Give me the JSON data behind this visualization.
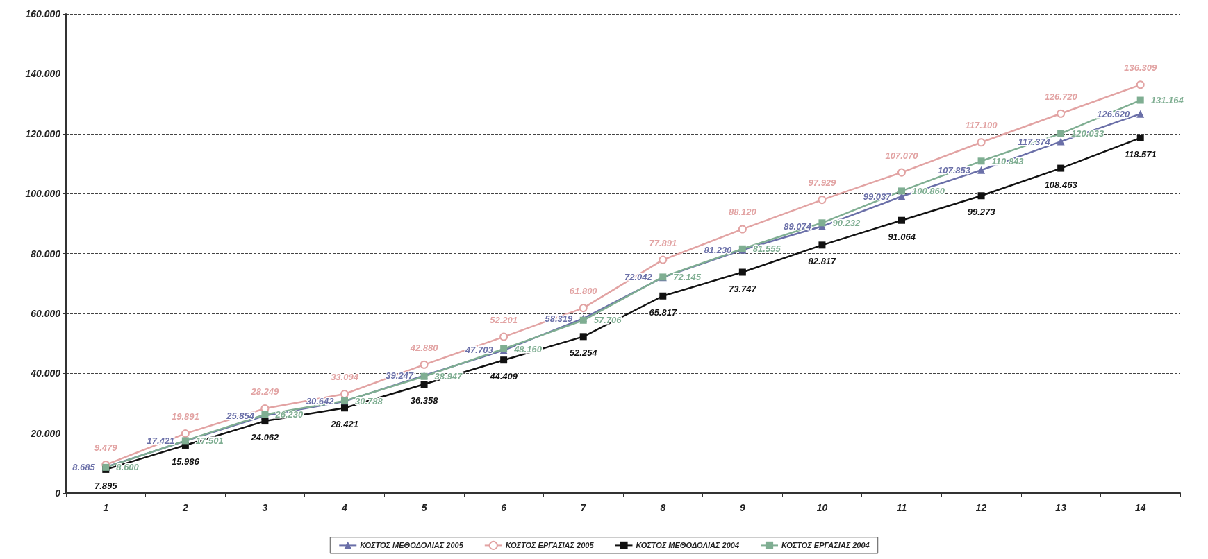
{
  "chart_data": {
    "type": "line",
    "categories": [
      "1",
      "2",
      "3",
      "4",
      "5",
      "6",
      "7",
      "8",
      "9",
      "10",
      "11",
      "12",
      "13",
      "14"
    ],
    "ylim": [
      0,
      160000
    ],
    "yticks": [
      0,
      {
        "value": 20000,
        "label": "20.000"
      },
      {
        "value": 40000,
        "label": "40.000"
      },
      {
        "value": 60000,
        "label": "60.000"
      },
      {
        "value": 80000,
        "label": "80.000"
      },
      {
        "value": 100000,
        "label": "100.000"
      },
      {
        "value": 120000,
        "label": "120.000"
      },
      {
        "value": 140000,
        "label": "140.000"
      },
      {
        "value": 160000,
        "label": "160.000"
      }
    ],
    "grid": "y",
    "legend": "bottom",
    "series": [
      {
        "name": "ΚΟΣΤΟΣ ΜΕΘΟΔΟΛΙΑΣ 2005",
        "color": "#6a6fa8",
        "marker": "triangle",
        "values": [
          8685,
          17421,
          25854,
          30642,
          39247,
          47703,
          58319,
          72042,
          81230,
          89074,
          99037,
          107853,
          117374,
          126620
        ],
        "value_labels": [
          "8.685",
          "17.421",
          "25.854",
          "30.642",
          "39.247",
          "47.703",
          "58.319",
          "72.042",
          "81.230",
          "89.074",
          "99.037",
          "107.853",
          "117.374",
          "126.620"
        ]
      },
      {
        "name": "ΚΟΣΤΟΣ ΕΡΓΑΣΙΑΣ 2005",
        "color": "#e2a3a3",
        "marker": "circle",
        "values": [
          9479,
          19891,
          28249,
          33094,
          42880,
          52201,
          61800,
          77891,
          88120,
          97929,
          107070,
          117100,
          126720,
          136309
        ],
        "value_labels": [
          "9.479",
          "19.891",
          "28.249",
          "33.094",
          "42.880",
          "52.201",
          "61.800",
          "77.891",
          "88.120",
          "97.929",
          "107.070",
          "117.100",
          "126.720",
          "136.309"
        ]
      },
      {
        "name": "ΚΟΣΤΟΣ ΜΕΘΟΔΟΛΙΑΣ 2004",
        "color": "#111111",
        "marker": "square",
        "values": [
          7895,
          15986,
          24062,
          28421,
          36358,
          44409,
          52254,
          65817,
          73747,
          82817,
          91064,
          99273,
          108463,
          118571
        ],
        "value_labels": [
          "7.895",
          "15.986",
          "24.062",
          "28.421",
          "36.358",
          "44.409",
          "52.254",
          "65.817",
          "73.747",
          "82.817",
          "91.064",
          "99.273",
          "108.463",
          "118.571"
        ]
      },
      {
        "name": "ΚΟΣΤΟΣ ΕΡΓΑΣΙΑΣ 2004",
        "color": "#7fae92",
        "marker": "square",
        "values": [
          8600,
          17501,
          26230,
          30788,
          38947,
          48160,
          57706,
          72145,
          81555,
          90232,
          100860,
          110843,
          120033,
          131164
        ],
        "value_labels": [
          "8.600",
          "17.501",
          "26.230",
          "30.788",
          "38.947",
          "48.160",
          "57.706",
          "72.145",
          "81.555",
          "90.232",
          "100.860",
          "110.843",
          "120.033",
          "131.164"
        ]
      }
    ]
  }
}
